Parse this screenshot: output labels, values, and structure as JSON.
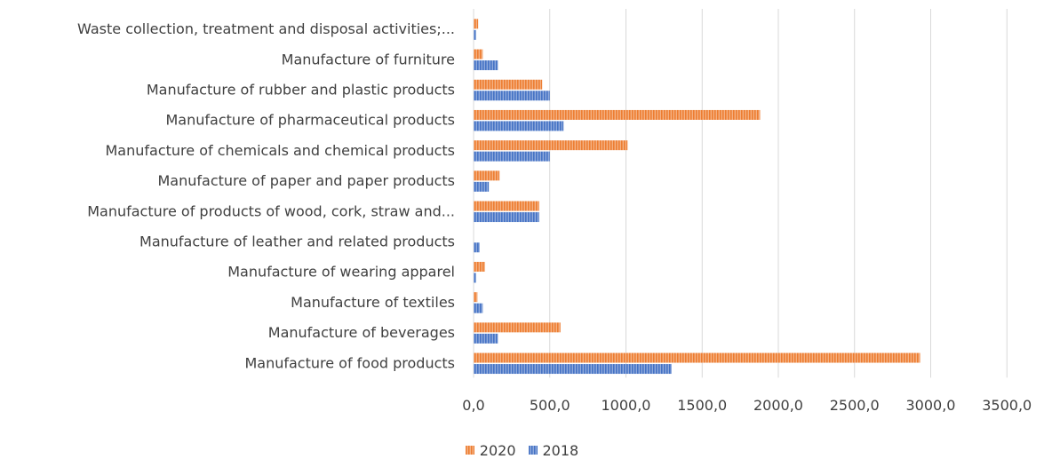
{
  "chart_data": {
    "type": "bar",
    "orientation": "horizontal",
    "categories": [
      "Waste collection, treatment and disposal activities;...",
      "Manufacture of furniture",
      "Manufacture of rubber and plastic products",
      "Manufacture of pharmaceutical products",
      "Manufacture of chemicals and chemical products",
      "Manufacture of paper and paper products",
      "Manufacture of products of wood, cork, straw and...",
      "Manufacture of leather and related products",
      "Manufacture of wearing apparel",
      "Manufacture of textiles",
      "Manufacture of beverages",
      "Manufacture of food products"
    ],
    "series": [
      {
        "name": "2020",
        "color": "#ED7D31",
        "values": [
          30,
          60,
          450,
          1880,
          1010,
          170,
          430,
          0,
          75,
          25,
          570,
          2930
        ]
      },
      {
        "name": "2018",
        "color": "#4472C4",
        "values": [
          15,
          160,
          500,
          590,
          500,
          100,
          430,
          40,
          15,
          60,
          160,
          1300
        ]
      }
    ],
    "xlim": [
      0,
      3500
    ],
    "xticks": [
      "0,0",
      "500,0",
      "1000,0",
      "1500,0",
      "2000,0",
      "2500,0",
      "3000,0",
      "3500,0"
    ],
    "grid": true,
    "legend_position": "bottom"
  }
}
